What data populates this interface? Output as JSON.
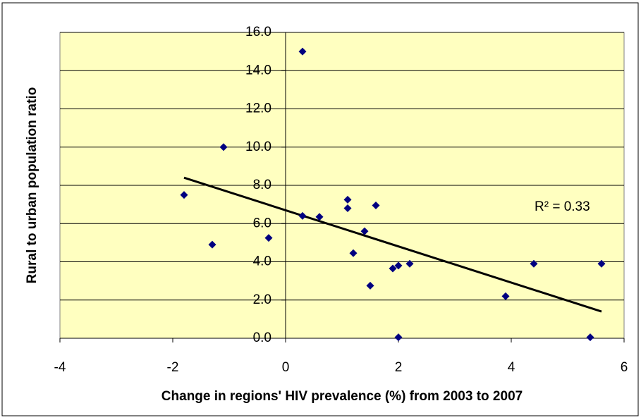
{
  "chart_data": {
    "type": "scatter",
    "x_label": "Change in regions' HIV prevalence (%) from 2003 to 2007",
    "y_label": "Rural to urban population ratio",
    "xlim": [
      -4,
      6
    ],
    "xticks": [
      -4,
      -2,
      0,
      2,
      4,
      6
    ],
    "ylim": [
      0,
      16
    ],
    "yticks": [
      {
        "value": 0,
        "label": "0.0"
      },
      {
        "value": 2,
        "label": "2.0"
      },
      {
        "value": 4,
        "label": "4.0"
      },
      {
        "value": 6,
        "label": "6.0"
      },
      {
        "value": 8,
        "label": "8.0"
      },
      {
        "value": 10,
        "label": "10.0"
      },
      {
        "value": 12,
        "label": "12.0"
      },
      {
        "value": 14,
        "label": "14.0"
      },
      {
        "value": 16,
        "label": "16.0"
      }
    ],
    "grid": true,
    "color": "#000080",
    "x": [
      -1.8,
      -1.3,
      -1.1,
      -0.3,
      0.3,
      0.3,
      0.6,
      1.1,
      1.1,
      1.2,
      1.4,
      1.5,
      1.6,
      1.9,
      2.0,
      2.0,
      2.2,
      3.9,
      4.4,
      5.4,
      5.6
    ],
    "values": [
      7.5,
      4.9,
      10.0,
      5.25,
      15.0,
      6.4,
      6.35,
      7.25,
      6.8,
      4.45,
      5.6,
      2.75,
      6.95,
      3.65,
      3.8,
      0.05,
      3.9,
      2.2,
      3.9,
      0.05,
      3.9
    ],
    "trendline": {
      "x": [
        -1.8,
        5.6
      ],
      "values": [
        8.4,
        1.4
      ],
      "color": "#000000"
    },
    "annotation": "R² = 0.33"
  }
}
